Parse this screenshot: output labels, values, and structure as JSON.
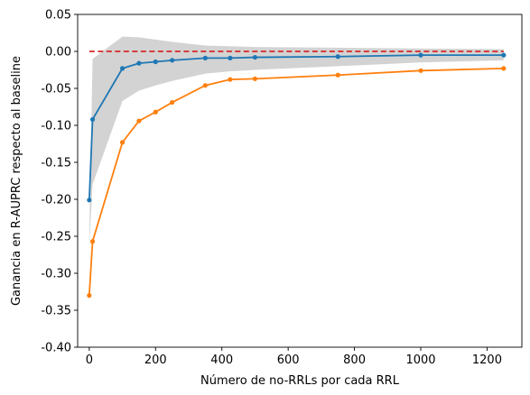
{
  "chart_data": {
    "type": "line",
    "title": "",
    "xlabel": "Número de no-RRLs por cada RRL",
    "ylabel": "Ganancia en R-AUPRC respecto al baseline",
    "xlim": [
      -35,
      1305
    ],
    "ylim": [
      -0.4,
      0.05
    ],
    "x_ticks": [
      0,
      200,
      400,
      600,
      800,
      1000,
      1200
    ],
    "y_ticks": [
      -0.4,
      -0.35,
      -0.3,
      -0.25,
      -0.2,
      -0.15,
      -0.1,
      -0.05,
      0.0,
      0.05
    ],
    "grid": false,
    "legend": "none",
    "baseline": {
      "y": 0.0,
      "color": "#d62728",
      "style": "dashed"
    },
    "band": {
      "color": "#d3d3d3",
      "x": [
        0,
        10,
        100,
        150,
        200,
        250,
        350,
        425,
        500,
        750,
        1000,
        1250
      ],
      "upper": [
        -0.25,
        -0.01,
        0.02,
        0.019,
        0.016,
        0.013,
        0.008,
        0.007,
        0.006,
        0.005,
        0.004,
        0.003
      ],
      "lower": [
        -0.26,
        -0.18,
        -0.067,
        -0.053,
        -0.046,
        -0.04,
        -0.03,
        -0.027,
        -0.025,
        -0.02,
        -0.015,
        -0.012
      ]
    },
    "series": [
      {
        "color": "#1f77b4",
        "x": [
          0,
          10,
          100,
          150,
          200,
          250,
          350,
          425,
          500,
          750,
          1000,
          1250
        ],
        "y": [
          -0.201,
          -0.092,
          -0.023,
          -0.016,
          -0.014,
          -0.012,
          -0.009,
          -0.009,
          -0.008,
          -0.007,
          -0.005,
          -0.005
        ]
      },
      {
        "color": "#ff7f0e",
        "x": [
          0,
          10,
          100,
          150,
          200,
          250,
          350,
          425,
          500,
          750,
          1000,
          1250
        ],
        "y": [
          -0.33,
          -0.257,
          -0.123,
          -0.094,
          -0.082,
          -0.069,
          -0.046,
          -0.038,
          -0.037,
          -0.032,
          -0.026,
          -0.023
        ]
      }
    ]
  }
}
